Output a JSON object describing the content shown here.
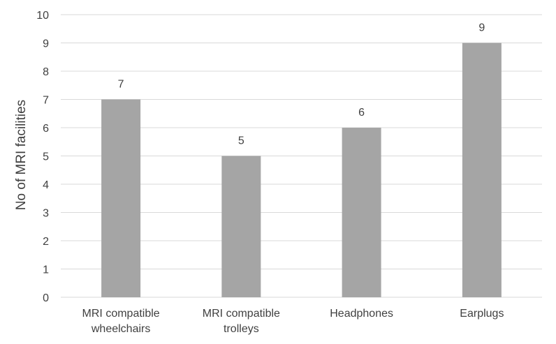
{
  "chart_data": {
    "type": "bar",
    "title": "",
    "xlabel": "",
    "ylabel": "No of MRI facilities",
    "ylim": [
      0,
      10
    ],
    "yticks": [
      0,
      1,
      2,
      3,
      4,
      5,
      6,
      7,
      8,
      9,
      10
    ],
    "grid": true,
    "legend": "none",
    "categories": [
      [
        "MRI compatible",
        "wheelchairs"
      ],
      [
        "MRI compatible",
        "trolleys"
      ],
      [
        "Headphones"
      ],
      [
        "Earplugs"
      ]
    ],
    "values": [
      7,
      5,
      6,
      9
    ],
    "data_labels": [
      "7",
      "5",
      "6",
      "9"
    ],
    "colors": {
      "bar": "#a5a5a5",
      "grid": "#d9d9d9",
      "text": "#404040"
    }
  }
}
